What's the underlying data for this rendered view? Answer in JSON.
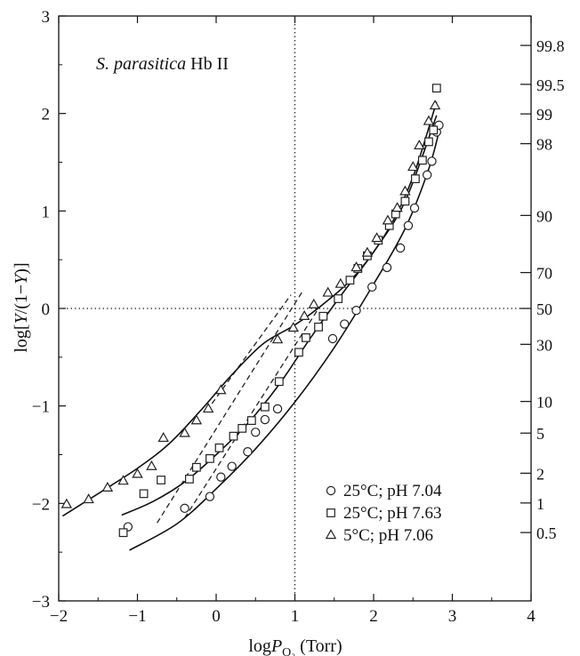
{
  "chart_data": {
    "type": "scatter",
    "title": "",
    "annotation": {
      "species": "S. parasitica",
      "rest": " Hb II"
    },
    "xlabel": {
      "pre": "log",
      "P": "P",
      "sub": "O₂",
      "post": " (Torr)"
    },
    "ylabel": {
      "a": "log[",
      "b": "Y",
      "c": "/(1−",
      "d": "Y",
      "e": ")]"
    },
    "xlim": [
      -2,
      4
    ],
    "ylim": [
      -3,
      3
    ],
    "x_ticks": [
      -2,
      -1,
      0,
      1,
      2,
      3,
      4
    ],
    "x_tick_labels": [
      "−2",
      "−1",
      "0",
      "1",
      "2",
      "3",
      "4"
    ],
    "y_ticks": [
      -3,
      -2,
      -1,
      0,
      1,
      2,
      3
    ],
    "y_tick_labels": [
      "−3",
      "−2",
      "−1",
      "0",
      "1",
      "2",
      "3"
    ],
    "right_axis_percent_ticks": [
      "99.8",
      "99.5",
      "99",
      "98",
      "90",
      "70",
      "50",
      "30",
      "10",
      "5",
      "2",
      "1",
      "0.5"
    ],
    "reference_lines": {
      "x": 1,
      "y": 0
    },
    "grid": false,
    "legend_position": "bottom-right",
    "series": [
      {
        "name": "25°C; pH 7.04",
        "marker": "circle",
        "points": [
          [
            -1.12,
            -2.24
          ],
          [
            -0.4,
            -2.05
          ],
          [
            -0.08,
            -1.93
          ],
          [
            0.06,
            -1.73
          ],
          [
            0.2,
            -1.62
          ],
          [
            0.4,
            -1.47
          ],
          [
            0.5,
            -1.27
          ],
          [
            0.62,
            -1.14
          ],
          [
            0.78,
            -1.03
          ],
          [
            1.48,
            -0.31
          ],
          [
            1.63,
            -0.16
          ],
          [
            1.78,
            -0.02
          ],
          [
            1.98,
            0.22
          ],
          [
            2.17,
            0.42
          ],
          [
            2.34,
            0.62
          ],
          [
            2.44,
            0.85
          ],
          [
            2.52,
            1.03
          ],
          [
            2.68,
            1.37
          ],
          [
            2.74,
            1.51
          ],
          [
            2.8,
            1.81
          ],
          [
            2.83,
            1.88
          ]
        ],
        "fit": [
          [
            -1.1,
            -2.48
          ],
          [
            -0.5,
            -2.21
          ],
          [
            0,
            -1.85
          ],
          [
            0.5,
            -1.44
          ],
          [
            1.0,
            -0.96
          ],
          [
            1.5,
            -0.4
          ],
          [
            2.0,
            0.25
          ],
          [
            2.4,
            0.82
          ],
          [
            2.7,
            1.43
          ],
          [
            2.85,
            1.88
          ]
        ]
      },
      {
        "name": "25°C; pH 7.63",
        "marker": "square",
        "points": [
          [
            -1.18,
            -2.3
          ],
          [
            -0.92,
            -1.9
          ],
          [
            -0.7,
            -1.76
          ],
          [
            -0.34,
            -1.75
          ],
          [
            -0.25,
            -1.63
          ],
          [
            -0.08,
            -1.54
          ],
          [
            0.04,
            -1.43
          ],
          [
            0.22,
            -1.31
          ],
          [
            0.33,
            -1.23
          ],
          [
            0.45,
            -1.15
          ],
          [
            0.62,
            -1.01
          ],
          [
            0.8,
            -0.75
          ],
          [
            1.05,
            -0.45
          ],
          [
            1.14,
            -0.3
          ],
          [
            1.3,
            -0.19
          ],
          [
            1.36,
            -0.08
          ],
          [
            1.55,
            0.1
          ],
          [
            1.7,
            0.29
          ],
          [
            1.8,
            0.41
          ],
          [
            1.92,
            0.54
          ],
          [
            2.06,
            0.7
          ],
          [
            2.2,
            0.85
          ],
          [
            2.28,
            0.97
          ],
          [
            2.4,
            1.1
          ],
          [
            2.53,
            1.33
          ],
          [
            2.62,
            1.52
          ],
          [
            2.7,
            1.71
          ],
          [
            2.76,
            1.83
          ],
          [
            2.8,
            2.26
          ]
        ],
        "fit": [
          [
            -1.2,
            -2.12
          ],
          [
            -0.8,
            -1.98
          ],
          [
            -0.4,
            -1.78
          ],
          [
            0,
            -1.5
          ],
          [
            0.4,
            -1.18
          ],
          [
            0.8,
            -0.78
          ],
          [
            1.2,
            -0.3
          ],
          [
            1.6,
            0.15
          ],
          [
            2.0,
            0.58
          ],
          [
            2.4,
            1.1
          ],
          [
            2.8,
            1.98
          ]
        ]
      },
      {
        "name": "5°C; pH 7.06",
        "marker": "triangle",
        "points": [
          [
            -1.9,
            -2.01
          ],
          [
            -1.62,
            -1.96
          ],
          [
            -1.38,
            -1.84
          ],
          [
            -1.18,
            -1.77
          ],
          [
            -1.0,
            -1.7
          ],
          [
            -0.82,
            -1.62
          ],
          [
            -0.67,
            -1.33
          ],
          [
            -0.4,
            -1.28
          ],
          [
            -0.25,
            -1.15
          ],
          [
            -0.1,
            -1.03
          ],
          [
            0.06,
            -0.84
          ],
          [
            0.78,
            -0.32
          ],
          [
            0.98,
            -0.2
          ],
          [
            1.12,
            -0.08
          ],
          [
            1.24,
            0.04
          ],
          [
            1.42,
            0.16
          ],
          [
            1.58,
            0.25
          ],
          [
            1.78,
            0.42
          ],
          [
            1.92,
            0.57
          ],
          [
            2.04,
            0.72
          ],
          [
            2.18,
            0.9
          ],
          [
            2.3,
            1.03
          ],
          [
            2.4,
            1.2
          ],
          [
            2.5,
            1.45
          ],
          [
            2.58,
            1.67
          ],
          [
            2.7,
            1.92
          ],
          [
            2.78,
            2.08
          ]
        ],
        "fit": [
          [
            -1.95,
            -2.13
          ],
          [
            -1.5,
            -1.9
          ],
          [
            -1.0,
            -1.64
          ],
          [
            -0.6,
            -1.39
          ],
          [
            -0.2,
            -1.05
          ],
          [
            0.2,
            -0.68
          ],
          [
            0.6,
            -0.36
          ],
          [
            1.0,
            -0.17
          ],
          [
            1.4,
            0.07
          ],
          [
            1.8,
            0.37
          ],
          [
            2.2,
            0.83
          ],
          [
            2.5,
            1.35
          ],
          [
            2.8,
            2.12
          ]
        ]
      }
    ],
    "dashed_lines": [
      [
        [
          -0.75,
          -2.2
        ],
        [
          1.1,
          0.18
        ]
      ],
      [
        [
          -0.4,
          -2.15
        ],
        [
          1.3,
          0.0
        ]
      ],
      [
        [
          -0.12,
          -1.05
        ],
        [
          0.95,
          0.14
        ]
      ]
    ]
  }
}
